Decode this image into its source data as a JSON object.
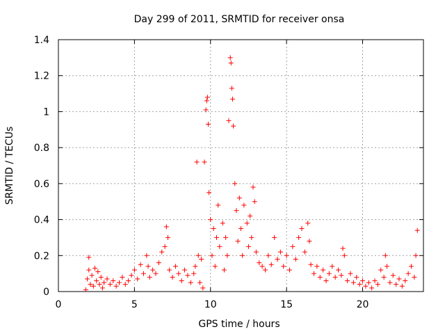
{
  "chart_data": {
    "type": "scatter",
    "title": "Day 299 of 2011, SRMTID for receiver onsa",
    "xlabel": "GPS time / hours",
    "ylabel": "SRMTID / TECUs",
    "xlim": [
      0,
      24
    ],
    "ylim": [
      0,
      1.4
    ],
    "xticks": [
      0,
      5,
      10,
      15,
      20
    ],
    "yticks": [
      0,
      0.2,
      0.4,
      0.6,
      0.8,
      1,
      1.2,
      1.4
    ],
    "xtick_labels": [
      "0",
      "5",
      "10",
      "15",
      "20"
    ],
    "ytick_labels": [
      "0",
      "0.2",
      "0.4",
      "0.6",
      "0.8",
      "1",
      "1.2",
      "1.4"
    ],
    "grid": true,
    "marker": "+",
    "series": [
      {
        "name": "SRMTID",
        "color": "#ff0000",
        "points": [
          [
            1.8,
            0.01
          ],
          [
            1.9,
            0.07
          ],
          [
            2.0,
            0.19
          ],
          [
            2.0,
            0.12
          ],
          [
            2.1,
            0.04
          ],
          [
            2.2,
            0.09
          ],
          [
            2.3,
            0.03
          ],
          [
            2.4,
            0.13
          ],
          [
            2.5,
            0.06
          ],
          [
            2.6,
            0.11
          ],
          [
            2.7,
            0.04
          ],
          [
            2.8,
            0.08
          ],
          [
            2.9,
            0.02
          ],
          [
            3.0,
            0.05
          ],
          [
            3.2,
            0.07
          ],
          [
            3.4,
            0.04
          ],
          [
            3.6,
            0.06
          ],
          [
            3.8,
            0.03
          ],
          [
            4.0,
            0.05
          ],
          [
            4.2,
            0.08
          ],
          [
            4.4,
            0.04
          ],
          [
            4.6,
            0.06
          ],
          [
            4.8,
            0.09
          ],
          [
            5.0,
            0.12
          ],
          [
            5.2,
            0.07
          ],
          [
            5.4,
            0.15
          ],
          [
            5.6,
            0.1
          ],
          [
            5.8,
            0.2
          ],
          [
            5.9,
            0.14
          ],
          [
            6.0,
            0.08
          ],
          [
            6.2,
            0.12
          ],
          [
            6.4,
            0.1
          ],
          [
            6.6,
            0.16
          ],
          [
            6.8,
            0.22
          ],
          [
            7.0,
            0.25
          ],
          [
            7.1,
            0.36
          ],
          [
            7.2,
            0.3
          ],
          [
            7.3,
            0.12
          ],
          [
            7.5,
            0.08
          ],
          [
            7.7,
            0.14
          ],
          [
            7.9,
            0.1
          ],
          [
            8.1,
            0.06
          ],
          [
            8.3,
            0.12
          ],
          [
            8.5,
            0.09
          ],
          [
            8.7,
            0.05
          ],
          [
            8.9,
            0.1
          ],
          [
            9.0,
            0.14
          ],
          [
            9.1,
            0.72
          ],
          [
            9.2,
            0.2
          ],
          [
            9.3,
            0.05
          ],
          [
            9.4,
            0.18
          ],
          [
            9.5,
            0.02
          ],
          [
            9.6,
            0.72
          ],
          [
            9.7,
            1.01
          ],
          [
            9.75,
            1.06
          ],
          [
            9.8,
            1.08
          ],
          [
            9.85,
            0.93
          ],
          [
            9.9,
            0.55
          ],
          [
            10.0,
            0.4
          ],
          [
            10.1,
            0.2
          ],
          [
            10.2,
            0.35
          ],
          [
            10.3,
            0.14
          ],
          [
            10.4,
            0.3
          ],
          [
            10.5,
            0.48
          ],
          [
            10.6,
            0.25
          ],
          [
            10.8,
            0.38
          ],
          [
            10.9,
            0.12
          ],
          [
            11.0,
            0.3
          ],
          [
            11.1,
            0.2
          ],
          [
            11.2,
            0.95
          ],
          [
            11.3,
            1.3
          ],
          [
            11.35,
            1.27
          ],
          [
            11.4,
            1.13
          ],
          [
            11.45,
            1.07
          ],
          [
            11.5,
            0.92
          ],
          [
            11.6,
            0.6
          ],
          [
            11.7,
            0.45
          ],
          [
            11.8,
            0.28
          ],
          [
            11.9,
            0.52
          ],
          [
            12.0,
            0.35
          ],
          [
            12.1,
            0.2
          ],
          [
            12.2,
            0.48
          ],
          [
            12.4,
            0.38
          ],
          [
            12.5,
            0.25
          ],
          [
            12.6,
            0.42
          ],
          [
            12.7,
            0.3
          ],
          [
            12.8,
            0.58
          ],
          [
            12.9,
            0.5
          ],
          [
            13.0,
            0.22
          ],
          [
            13.2,
            0.16
          ],
          [
            13.4,
            0.14
          ],
          [
            13.6,
            0.12
          ],
          [
            13.8,
            0.2
          ],
          [
            14.0,
            0.15
          ],
          [
            14.2,
            0.3
          ],
          [
            14.4,
            0.18
          ],
          [
            14.6,
            0.22
          ],
          [
            14.8,
            0.14
          ],
          [
            15.0,
            0.2
          ],
          [
            15.2,
            0.12
          ],
          [
            15.4,
            0.25
          ],
          [
            15.6,
            0.18
          ],
          [
            15.8,
            0.3
          ],
          [
            16.0,
            0.35
          ],
          [
            16.2,
            0.22
          ],
          [
            16.4,
            0.38
          ],
          [
            16.5,
            0.28
          ],
          [
            16.6,
            0.15
          ],
          [
            16.8,
            0.1
          ],
          [
            17.0,
            0.14
          ],
          [
            17.2,
            0.08
          ],
          [
            17.4,
            0.12
          ],
          [
            17.6,
            0.06
          ],
          [
            17.8,
            0.1
          ],
          [
            18.0,
            0.14
          ],
          [
            18.2,
            0.08
          ],
          [
            18.4,
            0.12
          ],
          [
            18.6,
            0.09
          ],
          [
            18.7,
            0.24
          ],
          [
            18.8,
            0.2
          ],
          [
            19.0,
            0.06
          ],
          [
            19.2,
            0.1
          ],
          [
            19.4,
            0.05
          ],
          [
            19.6,
            0.08
          ],
          [
            19.8,
            0.04
          ],
          [
            20.0,
            0.06
          ],
          [
            20.2,
            0.03
          ],
          [
            20.4,
            0.05
          ],
          [
            20.6,
            0.02
          ],
          [
            20.8,
            0.06
          ],
          [
            21.0,
            0.04
          ],
          [
            21.2,
            0.12
          ],
          [
            21.4,
            0.08
          ],
          [
            21.5,
            0.2
          ],
          [
            21.6,
            0.14
          ],
          [
            21.8,
            0.05
          ],
          [
            22.0,
            0.09
          ],
          [
            22.2,
            0.04
          ],
          [
            22.4,
            0.07
          ],
          [
            22.6,
            0.03
          ],
          [
            22.8,
            0.06
          ],
          [
            23.0,
            0.1
          ],
          [
            23.2,
            0.14
          ],
          [
            23.4,
            0.08
          ],
          [
            23.5,
            0.2
          ],
          [
            23.6,
            0.34
          ]
        ]
      }
    ]
  }
}
